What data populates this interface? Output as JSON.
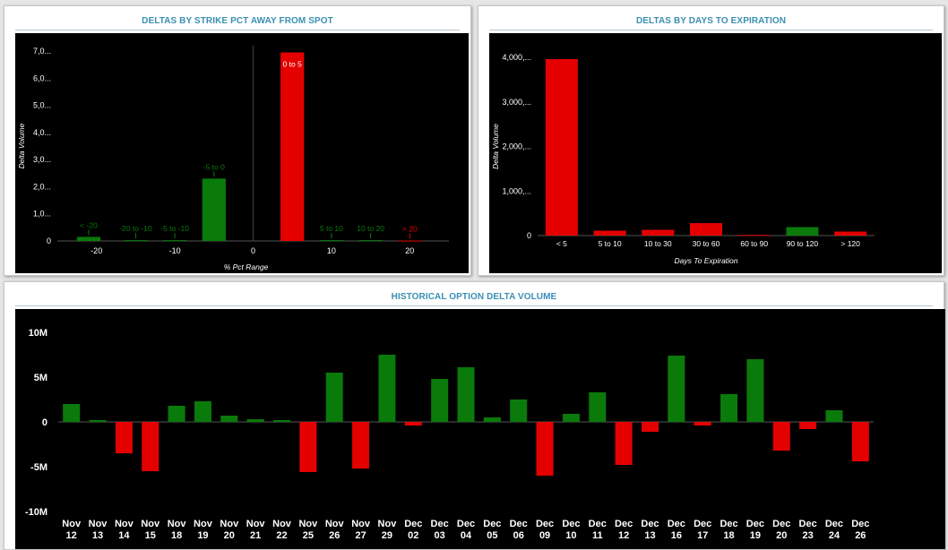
{
  "colors": {
    "positive": "#0a7a0a",
    "negative": "#e50000",
    "panel_title": "#3a8fb3"
  },
  "panels": {
    "strike": {
      "title": "DELTAS BY STRIKE PCT AWAY FROM SPOT"
    },
    "expiry": {
      "title": "DELTAS BY DAYS TO EXPIRATION"
    },
    "history": {
      "title": "HISTORICAL OPTION DELTA VOLUME"
    }
  },
  "chart_data": [
    {
      "id": "strike",
      "type": "bar",
      "xlabel": "% Pct Range",
      "ylabel": "Delta Volume",
      "xlim": [
        -25,
        25
      ],
      "ylim": [
        0,
        7000
      ],
      "x_ticks": [
        -20,
        -10,
        0,
        10,
        20
      ],
      "y_ticks": [
        {
          "value": 0,
          "label": "0"
        },
        {
          "value": 1000,
          "label": "1,0..."
        },
        {
          "value": 2000,
          "label": "2,0..."
        },
        {
          "value": 3000,
          "label": "3,0..."
        },
        {
          "value": 4000,
          "label": "4,0..."
        },
        {
          "value": 5000,
          "label": "5,0..."
        },
        {
          "value": 6000,
          "label": "6,0..."
        },
        {
          "value": 7000,
          "label": "7,0..."
        }
      ],
      "bars": [
        {
          "label": "< -20",
          "x0": -22.5,
          "x1": -19.5,
          "value": 150,
          "sign": "positive"
        },
        {
          "label": "-20 to -10",
          "x0": -16.5,
          "x1": -13.5,
          "value": 30,
          "sign": "positive"
        },
        {
          "label": "-5 to -10",
          "x0": -11.5,
          "x1": -8.5,
          "value": 30,
          "sign": "positive"
        },
        {
          "label": "-5 to 0",
          "x0": -6.5,
          "x1": -3.5,
          "value": 2300,
          "sign": "positive"
        },
        {
          "label": "0 to 5",
          "x0": 3.5,
          "x1": 6.5,
          "value": 6950,
          "sign": "negative"
        },
        {
          "label": "5 to 10",
          "x0": 8.5,
          "x1": 11.5,
          "value": 30,
          "sign": "positive"
        },
        {
          "label": "10 to 20",
          "x0": 13.5,
          "x1": 16.5,
          "value": 30,
          "sign": "positive"
        },
        {
          "label": "> 20",
          "x0": 18.5,
          "x1": 21.5,
          "value": 15,
          "sign": "negative"
        }
      ]
    },
    {
      "id": "expiry",
      "type": "bar",
      "xlabel": "Days To Expiration",
      "ylabel": "Delta Volume",
      "ylim": [
        0,
        4000
      ],
      "y_ticks": [
        {
          "value": 0,
          "label": "0"
        },
        {
          "value": 1000,
          "label": "1,000,..."
        },
        {
          "value": 2000,
          "label": "2,000,..."
        },
        {
          "value": 3000,
          "label": "3,000,..."
        },
        {
          "value": 4000,
          "label": "4,000,..."
        }
      ],
      "categories": [
        "< 5",
        "5 to 10",
        "10 to 30",
        "30 to 60",
        "60 to 90",
        "90 to 120",
        "> 120"
      ],
      "values": [
        3960,
        110,
        130,
        280,
        15,
        190,
        90
      ],
      "signs": [
        "negative",
        "negative",
        "negative",
        "negative",
        "negative",
        "positive",
        "negative"
      ]
    },
    {
      "id": "history",
      "type": "bar",
      "ylim": [
        -10,
        10
      ],
      "y_ticks": [
        {
          "value": 10,
          "label": "10M"
        },
        {
          "value": 5,
          "label": "5M"
        },
        {
          "value": 0,
          "label": "0"
        },
        {
          "value": -5,
          "label": "-5M"
        },
        {
          "value": -10,
          "label": "-10M"
        }
      ],
      "categories": [
        [
          "Nov",
          "12"
        ],
        [
          "Nov",
          "13"
        ],
        [
          "Nov",
          "14"
        ],
        [
          "Nov",
          "15"
        ],
        [
          "Nov",
          "18"
        ],
        [
          "Nov",
          "19"
        ],
        [
          "Nov",
          "20"
        ],
        [
          "Nov",
          "21"
        ],
        [
          "Nov",
          "22"
        ],
        [
          "Nov",
          "25"
        ],
        [
          "Nov",
          "26"
        ],
        [
          "Nov",
          "27"
        ],
        [
          "Nov",
          "29"
        ],
        [
          "Dec",
          "02"
        ],
        [
          "Dec",
          "03"
        ],
        [
          "Dec",
          "04"
        ],
        [
          "Dec",
          "05"
        ],
        [
          "Dec",
          "06"
        ],
        [
          "Dec",
          "09"
        ],
        [
          "Dec",
          "10"
        ],
        [
          "Dec",
          "11"
        ],
        [
          "Dec",
          "12"
        ],
        [
          "Dec",
          "13"
        ],
        [
          "Dec",
          "16"
        ],
        [
          "Dec",
          "17"
        ],
        [
          "Dec",
          "18"
        ],
        [
          "Dec",
          "19"
        ],
        [
          "Dec",
          "20"
        ],
        [
          "Dec",
          "23"
        ],
        [
          "Dec",
          "24"
        ],
        [
          "Dec",
          "26"
        ]
      ],
      "values": [
        2.0,
        0.2,
        -3.5,
        -5.5,
        1.8,
        2.3,
        0.7,
        0.3,
        0.2,
        -5.6,
        5.5,
        -5.2,
        7.5,
        -0.4,
        4.8,
        6.1,
        0.5,
        2.5,
        -6.0,
        0.9,
        3.3,
        -4.8,
        -1.1,
        7.4,
        -0.4,
        3.1,
        7.0,
        -3.2,
        -0.8,
        1.3,
        -4.4
      ]
    }
  ]
}
